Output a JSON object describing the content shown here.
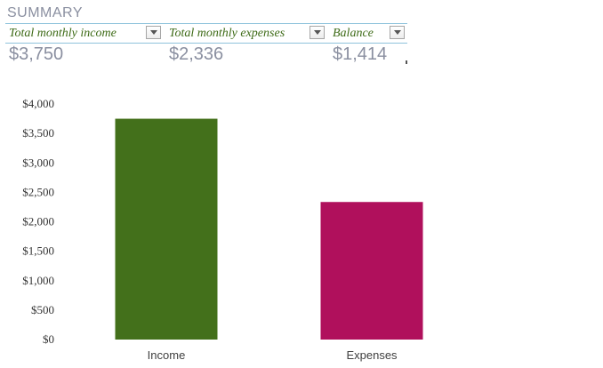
{
  "summary": {
    "title": "SUMMARY",
    "headers": [
      {
        "label": "Total monthly income"
      },
      {
        "label": "Total monthly expenses"
      },
      {
        "label": "Balance"
      }
    ],
    "values": [
      "$3,750",
      "$2,336",
      "$1,414"
    ]
  },
  "chart_data": {
    "type": "bar",
    "categories": [
      "Income",
      "Expenses"
    ],
    "values": [
      3750,
      2336
    ],
    "colors": [
      "#43701b",
      "#b0105c"
    ],
    "ylim": [
      0,
      4000
    ],
    "yticks": [
      "$0",
      "$500",
      "$1,000",
      "$1,500",
      "$2,000",
      "$2,500",
      "$3,000",
      "$3,500",
      "$4,000"
    ],
    "ytick_values": [
      0,
      500,
      1000,
      1500,
      2000,
      2500,
      3000,
      3500,
      4000
    ],
    "grid": false,
    "legend": "none"
  }
}
